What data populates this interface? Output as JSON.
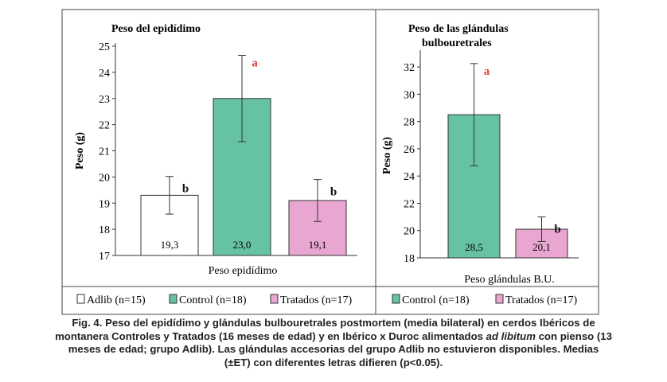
{
  "chart_data": [
    {
      "type": "bar",
      "title": "Peso del epidídimo",
      "ylabel": "Peso (g)",
      "xlabel": "Peso epidídimo",
      "ylim": [
        17,
        25
      ],
      "yticks": [
        17,
        18,
        19,
        20,
        21,
        22,
        23,
        24,
        25
      ],
      "categories": [
        "Adlib (n=15)",
        "Control (n=18)",
        "Tratados (n=17)"
      ],
      "values": [
        19.3,
        23.0,
        19.1
      ],
      "value_labels": [
        "19,3",
        "23,0",
        "19,1"
      ],
      "error": [
        0.72,
        1.65,
        0.8
      ],
      "letters": [
        "b",
        "a",
        "b"
      ],
      "colors": [
        "#ffffff",
        "#66c2a5",
        "#e9a6d0"
      ],
      "letter_colors": [
        "#111111",
        "#e03a3a",
        "#111111"
      ],
      "legend": [
        "Adlib (n=15)",
        "Control (n=18)",
        "Tratados (n=17)"
      ],
      "legend_position": "bottom"
    },
    {
      "type": "bar",
      "title": "Peso de las glándulas bulbouretrales",
      "ylabel": "Peso (g)",
      "xlabel": "Peso glándulas B.U.",
      "ylim": [
        18,
        33
      ],
      "yticks": [
        18,
        20,
        22,
        24,
        26,
        28,
        30,
        32
      ],
      "categories": [
        "Control (n=18)",
        "Tratados (n=17)"
      ],
      "values": [
        28.5,
        20.1
      ],
      "value_labels": [
        "28,5",
        "20,1"
      ],
      "error": [
        3.75,
        0.9
      ],
      "letters": [
        "a",
        "b"
      ],
      "colors": [
        "#66c2a5",
        "#e9a6d0"
      ],
      "letter_colors": [
        "#e03a3a",
        "#111111"
      ],
      "legend": [
        "Control (n=18)",
        "Tratados (n=17)"
      ],
      "legend_position": "bottom"
    }
  ],
  "caption": {
    "line1": "Fig. 4. Peso del epidídimo y glándulas bulbouretrales postmortem (media bilateral) en cerdos Ibéricos de",
    "line2": "montanera Controles y Tratados (16 meses de edad) y en Ibérico x Duroc alimentados ",
    "line2_italic": "ad libitum",
    "line2_end": " con pienso (13",
    "line3": "meses de edad; grupo Adlib). Las glándulas accesorias del grupo Adlib no estuvieron disponibles. Medias",
    "line4": "(±ET) con diferentes letras difieren (p<0.05)."
  }
}
